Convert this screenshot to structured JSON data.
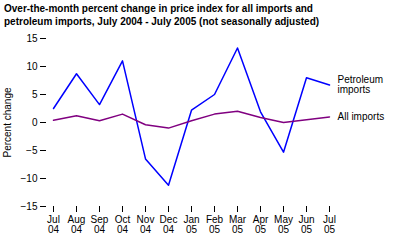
{
  "chart_data": {
    "type": "line",
    "title": "Over-the-month percent change in price index for all imports and\npetroleum imports, July 2004 - July 2005 (not seasonally adjusted)",
    "categories": [
      "Jul\n04",
      "Aug\n04",
      "Sep\n04",
      "Oct\n04",
      "Nov\n04",
      "Dec\n04",
      "Jan\n05",
      "Feb\n05",
      "Mar\n05",
      "Apr\n05",
      "May\n05",
      "Jun\n05",
      "Jul\n05"
    ],
    "series": [
      {
        "name": "Petroleum\nimports",
        "color": "#0000FF",
        "values": [
          2.5,
          8.7,
          3.2,
          11.0,
          -6.5,
          -11.2,
          2.2,
          5.0,
          13.3,
          1.9,
          -5.3,
          8.0,
          6.7
        ]
      },
      {
        "name": "All imports",
        "color": "#800080",
        "values": [
          0.4,
          1.2,
          0.3,
          1.5,
          -0.4,
          -1.0,
          0.3,
          1.5,
          2.0,
          0.9,
          0.0,
          0.5,
          1.0
        ]
      }
    ],
    "ylabel": "Percent change",
    "ylim": [
      -15,
      15
    ],
    "yticks": [
      -15,
      -10,
      -5,
      0,
      5,
      10,
      15
    ],
    "grid": false
  }
}
